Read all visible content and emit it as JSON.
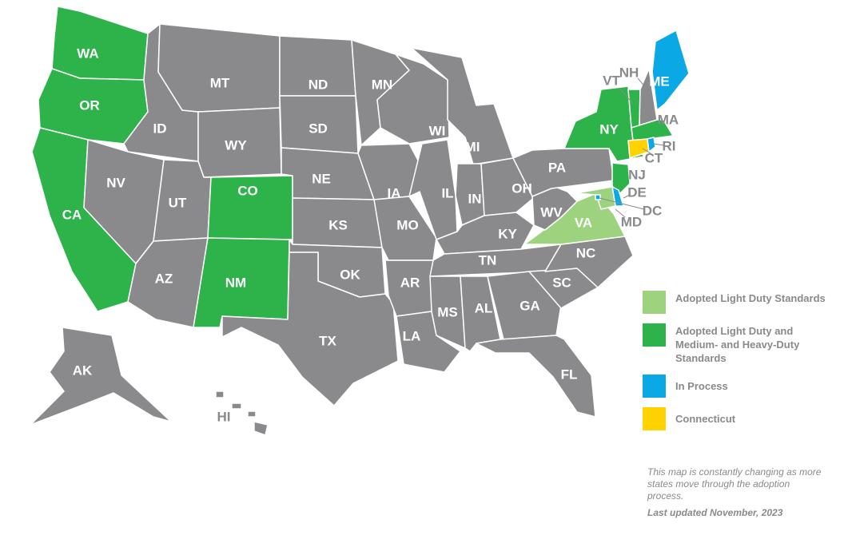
{
  "colors": {
    "none": "#8a8a8d",
    "light": "#9dd27e",
    "full": "#2db34a",
    "process": "#0aa9e6",
    "ct": "#ffd200"
  },
  "states": [
    {
      "code": "WA",
      "status": "full"
    },
    {
      "code": "OR",
      "status": "full"
    },
    {
      "code": "CA",
      "status": "full"
    },
    {
      "code": "ID",
      "status": "none"
    },
    {
      "code": "NV",
      "status": "none"
    },
    {
      "code": "MT",
      "status": "none"
    },
    {
      "code": "WY",
      "status": "none"
    },
    {
      "code": "UT",
      "status": "none"
    },
    {
      "code": "CO",
      "status": "full"
    },
    {
      "code": "AZ",
      "status": "none"
    },
    {
      "code": "NM",
      "status": "full"
    },
    {
      "code": "ND",
      "status": "none"
    },
    {
      "code": "SD",
      "status": "none"
    },
    {
      "code": "NE",
      "status": "none"
    },
    {
      "code": "KS",
      "status": "none"
    },
    {
      "code": "OK",
      "status": "none"
    },
    {
      "code": "TX",
      "status": "none"
    },
    {
      "code": "MN",
      "status": "none"
    },
    {
      "code": "IA",
      "status": "none"
    },
    {
      "code": "MO",
      "status": "none"
    },
    {
      "code": "AR",
      "status": "none"
    },
    {
      "code": "LA",
      "status": "none"
    },
    {
      "code": "WI",
      "status": "none"
    },
    {
      "code": "IL",
      "status": "none"
    },
    {
      "code": "MI",
      "status": "none"
    },
    {
      "code": "IN",
      "status": "none"
    },
    {
      "code": "OH",
      "status": "none"
    },
    {
      "code": "KY",
      "status": "none"
    },
    {
      "code": "TN",
      "status": "none"
    },
    {
      "code": "MS",
      "status": "none"
    },
    {
      "code": "AL",
      "status": "none"
    },
    {
      "code": "GA",
      "status": "none"
    },
    {
      "code": "FL",
      "status": "none"
    },
    {
      "code": "SC",
      "status": "none"
    },
    {
      "code": "NC",
      "status": "none"
    },
    {
      "code": "VA",
      "status": "light"
    },
    {
      "code": "WV",
      "status": "none"
    },
    {
      "code": "PA",
      "status": "none"
    },
    {
      "code": "NY",
      "status": "full"
    },
    {
      "code": "VT",
      "status": "full"
    },
    {
      "code": "NH",
      "status": "none"
    },
    {
      "code": "ME",
      "status": "process"
    },
    {
      "code": "MA",
      "status": "full"
    },
    {
      "code": "CT",
      "status": "ct"
    },
    {
      "code": "RI",
      "status": "process"
    },
    {
      "code": "NJ",
      "status": "full"
    },
    {
      "code": "DE",
      "status": "process"
    },
    {
      "code": "MD",
      "status": "light"
    },
    {
      "code": "DC",
      "status": "process"
    },
    {
      "code": "AK",
      "status": "none"
    },
    {
      "code": "HI",
      "status": "none"
    }
  ],
  "legend": [
    {
      "label": "Adopted Light Duty Standards",
      "status": "light"
    },
    {
      "label": "Adopted Light Duty and Medium- and Heavy-Duty Standards",
      "status": "full"
    },
    {
      "label": "In Process",
      "status": "process"
    },
    {
      "label": "Connecticut",
      "status": "ct"
    }
  ],
  "note": "This map is constantly changing as more states move through the adoption process.",
  "updated": "Last updated November, 2023"
}
